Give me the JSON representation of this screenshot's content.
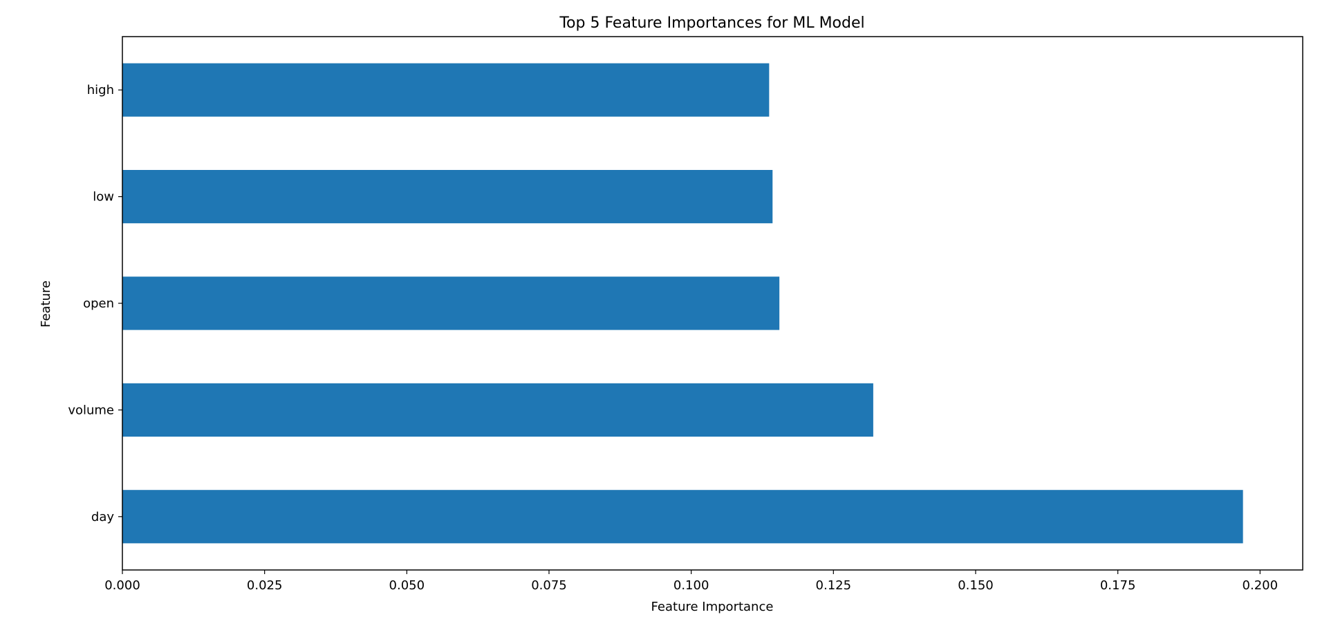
{
  "chart_data": {
    "type": "bar",
    "orientation": "horizontal",
    "title": "Top 5 Feature Importances for ML Model",
    "xlabel": "Feature Importance",
    "ylabel": "Feature",
    "categories": [
      "day",
      "volume",
      "open",
      "low",
      "high"
    ],
    "values": [
      0.197,
      0.132,
      0.1155,
      0.1143,
      0.1137
    ],
    "xlim": [
      0.0,
      0.2075
    ],
    "xticks": [
      "0.000",
      "0.025",
      "0.050",
      "0.075",
      "0.100",
      "0.125",
      "0.150",
      "0.175",
      "0.200"
    ],
    "xtick_values": [
      0.0,
      0.025,
      0.05,
      0.075,
      0.1,
      0.125,
      0.15,
      0.175,
      0.2
    ],
    "grid": false,
    "legend": "none",
    "bar_color": "#1f77b4"
  }
}
